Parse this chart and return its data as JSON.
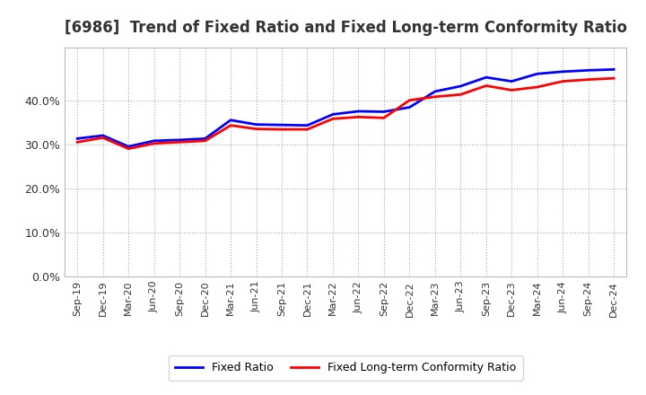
{
  "title": "[6986]  Trend of Fixed Ratio and Fixed Long-term Conformity Ratio",
  "x_labels": [
    "Sep-19",
    "Dec-19",
    "Mar-20",
    "Jun-20",
    "Sep-20",
    "Dec-20",
    "Mar-21",
    "Jun-21",
    "Sep-21",
    "Dec-21",
    "Mar-22",
    "Jun-22",
    "Sep-22",
    "Dec-22",
    "Mar-23",
    "Jun-23",
    "Sep-23",
    "Dec-23",
    "Mar-24",
    "Jun-24",
    "Sep-24",
    "Dec-24"
  ],
  "fixed_ratio": [
    0.313,
    0.32,
    0.295,
    0.308,
    0.31,
    0.313,
    0.355,
    0.345,
    0.344,
    0.343,
    0.368,
    0.375,
    0.374,
    0.384,
    0.42,
    0.432,
    0.452,
    0.443,
    0.46,
    0.465,
    0.468,
    0.47
  ],
  "fixed_lt_ratio": [
    0.305,
    0.315,
    0.29,
    0.302,
    0.305,
    0.308,
    0.343,
    0.335,
    0.334,
    0.334,
    0.358,
    0.362,
    0.36,
    0.4,
    0.408,
    0.413,
    0.433,
    0.423,
    0.43,
    0.443,
    0.447,
    0.45
  ],
  "fixed_ratio_color": "#0000ff",
  "fixed_lt_ratio_color": "#ff0000",
  "ylim": [
    0.0,
    0.52
  ],
  "yticks": [
    0.0,
    0.1,
    0.2,
    0.3,
    0.4
  ],
  "background_color": "#ffffff",
  "plot_bg_color": "#ffffff",
  "grid_color": "#aaaaaa",
  "title_color": "#333333",
  "legend_fixed_ratio": "Fixed Ratio",
  "legend_fixed_lt_ratio": "Fixed Long-term Conformity Ratio",
  "line_width": 2.0,
  "title_fontsize": 12
}
